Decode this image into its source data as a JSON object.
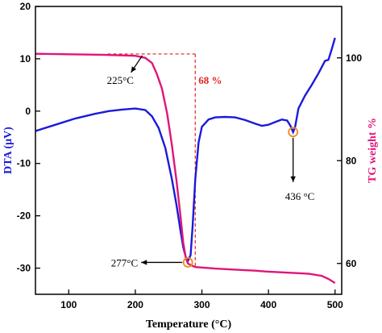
{
  "chart_data": {
    "type": "line",
    "xlabel": "Temperature (°C)",
    "ylabel_left": "DTA (μV)",
    "ylabel_right": "TG weight %",
    "xlim": [
      50,
      510
    ],
    "ylim_left": [
      -35,
      20
    ],
    "ylim_right": [
      54,
      110
    ],
    "x_ticks": [
      "100",
      "200",
      "300",
      "400",
      "500"
    ],
    "y_left_ticks": [
      "20",
      "10",
      "0",
      "-10",
      "-20",
      "-30"
    ],
    "y_right_ticks": [
      "100",
      "80",
      "60"
    ],
    "grid": false,
    "colors": {
      "dta": "#1a1adb",
      "tg": "#e0157a",
      "annotation": "#e2231a",
      "marker": "#f08a1c"
    },
    "series": [
      {
        "axis": "left",
        "x": [
          50,
          80,
          110,
          140,
          160,
          180,
          200,
          215,
          225,
          235,
          245,
          255,
          262,
          268,
          272,
          276,
          279,
          283,
          286,
          290,
          295,
          300,
          310,
          320,
          335,
          350,
          365,
          380,
          390,
          400,
          410,
          420,
          428,
          433,
          437,
          440,
          445,
          455,
          465,
          475,
          480,
          485,
          490,
          495,
          500
        ],
        "y": [
          -3.8,
          -2.6,
          -1.4,
          -0.5,
          0,
          0.3,
          0.5,
          0.2,
          -1.0,
          -3.2,
          -7,
          -13,
          -18,
          -23,
          -26,
          -28,
          -28.6,
          -27.5,
          -22,
          -13,
          -6,
          -3,
          -1.6,
          -1.2,
          -1.1,
          -1.2,
          -1.7,
          -2.4,
          -2.8,
          -2.6,
          -2.1,
          -1.6,
          -1.8,
          -2.8,
          -4.0,
          -3.0,
          0.5,
          3.0,
          5.0,
          7.2,
          8.4,
          9.6,
          9.8,
          11.8,
          14.0
        ]
      },
      {
        "axis": "right",
        "x": [
          50,
          100,
          150,
          200,
          215,
          225,
          232,
          240,
          248,
          255,
          262,
          268,
          272,
          276,
          279,
          283,
          290,
          300,
          320,
          350,
          380,
          400,
          430,
          460,
          480,
          490,
          500
        ],
        "y": [
          100.8,
          100.7,
          100.6,
          100.4,
          100,
          99,
          97,
          94,
          89,
          83,
          76,
          69,
          64,
          61,
          60,
          59.7,
          59.3,
          59.2,
          59,
          58.8,
          58.6,
          58.4,
          58.2,
          58,
          57.6,
          57,
          56.2
        ]
      }
    ],
    "annotations": [
      {
        "text": "225°C",
        "x": 225,
        "axis": "right",
        "y": 100.6
      },
      {
        "text": "68 %",
        "x": 290
      },
      {
        "text": "277°C",
        "x": 279,
        "axis": "left",
        "y": -28.6
      },
      {
        "text": "436 °C",
        "x": 437,
        "axis": "left",
        "y": -4.0
      }
    ]
  }
}
